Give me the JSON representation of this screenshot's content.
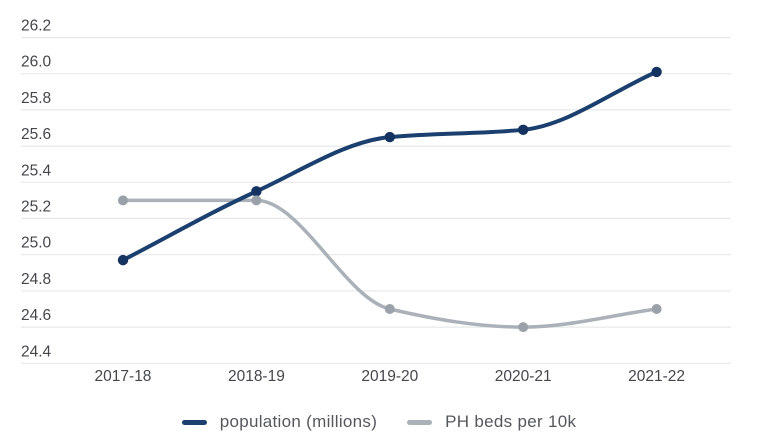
{
  "chart_data": {
    "type": "line",
    "title": "",
    "xlabel": "",
    "ylabel": "",
    "categories": [
      "2017-18",
      "2018-19",
      "2019-20",
      "2020-21",
      "2021-22"
    ],
    "series": [
      {
        "name": "population (millions)",
        "color": "#1b406f",
        "marker_color": "#143361",
        "values": [
          24.97,
          25.35,
          25.65,
          25.69,
          26.01
        ]
      },
      {
        "name": "PH beds per 10k",
        "color": "#abb1b8",
        "marker_color": "#9aa1a9",
        "values": [
          25.3,
          25.3,
          24.7,
          24.6,
          24.7
        ]
      }
    ],
    "ylim": [
      24.4,
      26.2
    ],
    "ytick_step": 0.2,
    "yticks": [
      "26.2",
      "26.0",
      "25.8",
      "25.6",
      "25.4",
      "25.2",
      "25.0",
      "24.8",
      "24.6",
      "24.4"
    ],
    "grid": "horizontal",
    "legend_position": "bottom"
  },
  "colors": {
    "background": "#ffffff",
    "gridline": "#e7e8e9",
    "tick_label": "#43474c",
    "legend_text": "#54585d"
  }
}
